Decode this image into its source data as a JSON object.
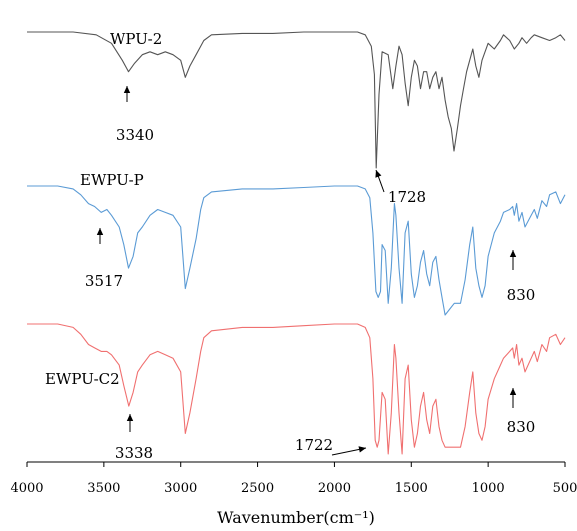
{
  "chart_data": {
    "type": "line",
    "xlabel": "Wavenumber(cm⁻¹)",
    "xlim": [
      4000,
      500
    ],
    "xticks": [
      4000,
      3500,
      3000,
      2500,
      2000,
      1500,
      1000,
      500
    ],
    "series": [
      {
        "name": "WPU-2",
        "color": "#555555",
        "x": [
          4000,
          3700,
          3550,
          3450,
          3380,
          3340,
          3300,
          3250,
          3200,
          3150,
          3100,
          3050,
          3000,
          2970,
          2940,
          2900,
          2870,
          2850,
          2800,
          2600,
          2400,
          2200,
          2000,
          1900,
          1850,
          1800,
          1760,
          1740,
          1728,
          1710,
          1690,
          1650,
          1620,
          1600,
          1580,
          1560,
          1540,
          1520,
          1500,
          1480,
          1460,
          1440,
          1420,
          1400,
          1380,
          1360,
          1340,
          1320,
          1300,
          1280,
          1260,
          1240,
          1222,
          1200,
          1180,
          1160,
          1140,
          1120,
          1100,
          1080,
          1060,
          1040,
          1000,
          960,
          920,
          900,
          860,
          830,
          800,
          780,
          750,
          720,
          700,
          650,
          600,
          560,
          530,
          500
        ],
        "y": [
          100,
          100,
          99,
          96,
          90,
          86,
          89,
          92,
          93,
          92,
          93,
          92,
          90,
          84,
          88,
          92,
          95,
          97,
          99,
          99.5,
          99.5,
          100,
          100,
          100,
          100,
          99,
          95,
          85,
          52,
          78,
          93,
          92,
          80,
          88,
          95,
          92,
          82,
          74,
          84,
          90,
          88,
          80,
          86,
          86,
          80,
          84,
          86,
          80,
          84,
          76,
          70,
          66,
          58,
          66,
          74,
          80,
          86,
          90,
          94,
          88,
          84,
          90,
          96,
          94,
          97,
          99,
          97,
          94,
          96,
          98,
          96,
          98,
          99,
          98,
          97,
          98,
          99,
          97
        ]
      },
      {
        "name": "EWPU-P",
        "color": "#5b9bd5",
        "x": [
          4000,
          3800,
          3700,
          3650,
          3600,
          3560,
          3517,
          3480,
          3450,
          3400,
          3370,
          3340,
          3310,
          3280,
          3250,
          3200,
          3150,
          3100,
          3050,
          3000,
          2970,
          2940,
          2900,
          2870,
          2850,
          2800,
          2600,
          2400,
          2200,
          2000,
          1900,
          1850,
          1800,
          1770,
          1750,
          1730,
          1715,
          1700,
          1690,
          1670,
          1650,
          1630,
          1610,
          1600,
          1580,
          1560,
          1540,
          1520,
          1500,
          1480,
          1460,
          1440,
          1420,
          1400,
          1380,
          1360,
          1340,
          1320,
          1300,
          1280,
          1250,
          1220,
          1200,
          1180,
          1150,
          1120,
          1100,
          1080,
          1060,
          1040,
          1020,
          1000,
          960,
          920,
          900,
          860,
          840,
          830,
          815,
          800,
          780,
          760,
          720,
          700,
          680,
          650,
          620,
          600,
          560,
          530,
          500
        ],
        "y": [
          100,
          100,
          99,
          97,
          94,
          93,
          91,
          92,
          90,
          86,
          80,
          72,
          76,
          84,
          86,
          90,
          92,
          91,
          90,
          86,
          65,
          72,
          82,
          92,
          96,
          98,
          99,
          99,
          99.5,
          100,
          100,
          100,
          99,
          96,
          84,
          64,
          62,
          64,
          80,
          78,
          60,
          72,
          94,
          90,
          72,
          60,
          84,
          88,
          70,
          62,
          66,
          74,
          78,
          70,
          66,
          74,
          76,
          68,
          62,
          56,
          58,
          60,
          60,
          60,
          68,
          80,
          86,
          72,
          66,
          62,
          66,
          76,
          84,
          88,
          91,
          92,
          93,
          90,
          94,
          88,
          91,
          86,
          90,
          92,
          89,
          95,
          93,
          97,
          98,
          94,
          97
        ]
      },
      {
        "name": "EWPU-C2",
        "color": "#f07070",
        "x": [
          4000,
          3800,
          3700,
          3650,
          3600,
          3560,
          3517,
          3480,
          3450,
          3400,
          3370,
          3338,
          3310,
          3280,
          3250,
          3200,
          3150,
          3100,
          3050,
          3000,
          2970,
          2940,
          2900,
          2870,
          2850,
          2800,
          2600,
          2400,
          2200,
          2000,
          1900,
          1850,
          1800,
          1770,
          1750,
          1735,
          1722,
          1710,
          1690,
          1670,
          1650,
          1630,
          1610,
          1600,
          1580,
          1560,
          1540,
          1520,
          1500,
          1480,
          1460,
          1440,
          1420,
          1400,
          1380,
          1360,
          1340,
          1320,
          1300,
          1280,
          1250,
          1220,
          1200,
          1180,
          1150,
          1120,
          1100,
          1080,
          1060,
          1040,
          1020,
          1000,
          960,
          920,
          900,
          860,
          840,
          830,
          815,
          800,
          780,
          760,
          720,
          700,
          680,
          650,
          620,
          600,
          560,
          530,
          500
        ],
        "y": [
          100,
          100,
          99,
          97,
          94,
          93,
          92,
          92,
          91,
          88,
          82,
          76,
          80,
          86,
          88,
          91,
          92,
          91,
          90,
          86,
          68,
          74,
          84,
          92,
          96,
          98,
          99,
          99,
          99.5,
          100,
          100,
          100,
          99,
          96,
          84,
          66,
          64,
          66,
          80,
          78,
          62,
          74,
          94,
          90,
          74,
          62,
          84,
          88,
          72,
          64,
          68,
          76,
          80,
          72,
          68,
          76,
          78,
          70,
          66,
          64,
          64,
          64,
          64,
          64,
          70,
          80,
          86,
          74,
          68,
          66,
          70,
          78,
          84,
          88,
          90,
          92,
          93,
          90,
          94,
          88,
          90,
          86,
          90,
          92,
          89,
          94,
          92,
          96,
          97,
          94,
          96
        ]
      }
    ],
    "annotations": [
      {
        "text": "3340",
        "x": 3340,
        "series": 0
      },
      {
        "text": "1728",
        "x": 1728,
        "series": 0
      },
      {
        "text": "3517",
        "x": 3517,
        "series": 1
      },
      {
        "text": "830",
        "x": 830,
        "series": 1
      },
      {
        "text": "3338",
        "x": 3338,
        "series": 2
      },
      {
        "text": "1722",
        "x": 1722,
        "series": 2
      },
      {
        "text": "830",
        "x": 830,
        "series": 2
      }
    ],
    "grid": false,
    "legend": "none"
  }
}
